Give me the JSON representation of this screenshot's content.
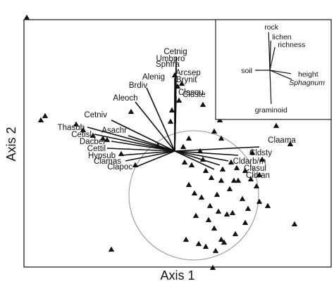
{
  "chart_data": {
    "type": "scatter",
    "title": "",
    "xlabel": "Axis 1",
    "ylabel": "Axis 2",
    "grid": false,
    "sites": {
      "x": [
        -1.05,
        0.92,
        -0.95,
        0.82,
        -0.92,
        -0.7,
        -0.65,
        -0.58,
        -0.51,
        -0.48,
        -0.38,
        -0.31,
        -0.28,
        -0.12,
        0.0,
        0.05,
        0.02,
        0.03,
        -0.02,
        -0.03,
        0.1,
        0.06,
        0.18,
        0.28,
        0.32,
        0.37,
        0.33,
        0.4,
        0.44,
        0.5,
        0.54,
        0.58,
        0.62,
        0.55,
        0.2,
        0.12,
        0.26,
        0.1,
        0.14,
        0.3,
        0.48,
        0.66,
        0.15,
        0.24,
        0.37,
        0.28,
        0.33,
        0.41,
        0.52,
        0.6,
        0.45,
        0.39,
        0.17,
        0.22,
        0.29,
        0.35,
        0.43,
        0.5,
        0.19,
        0.25,
        0.31,
        0.42,
        0.07,
        0.6,
        0.08,
        0.34,
        0.22,
        0.85,
        -0.45,
        0.2,
        0.27,
        0.33,
        0.72
      ],
      "y": [
        0.95,
        0.8,
        0.22,
        0.05,
        0.25,
        0.19,
        0.15,
        0.11,
        0.09,
        0.08,
        -0.02,
        0.28,
        -0.1,
        0.04,
        0.54,
        0.48,
        0.46,
        0.36,
        0.29,
        0.21,
        0.09,
        0.03,
        0.0,
        0.14,
        0.22,
        0.25,
        0.09,
        -0.08,
        -0.12,
        -0.14,
        -0.2,
        -0.25,
        -0.06,
        -0.01,
        -0.06,
        -0.1,
        -0.19,
        -0.24,
        -0.3,
        -0.31,
        -0.34,
        -0.39,
        -0.46,
        -0.49,
        -0.45,
        -0.55,
        -0.63,
        -0.44,
        -0.41,
        -0.36,
        -0.21,
        -0.27,
        -0.66,
        -0.68,
        -0.71,
        -0.65,
        -0.59,
        -0.51,
        -0.33,
        -0.39,
        -0.43,
        -0.21,
        -0.08,
        -0.17,
        -0.63,
        -0.13,
        -0.14,
        -0.52,
        -0.7,
        0.33,
        -0.83,
        -0.21,
        0.18
      ]
    },
    "species": [
      {
        "name": "Cetnig",
        "x": 0.01,
        "y": 0.67
      },
      {
        "name": "Umbpro",
        "x": 0.01,
        "y": 0.63
      },
      {
        "name": "Sphfra",
        "x": 0.01,
        "y": 0.59
      },
      {
        "name": "Alenig",
        "x": 0.0,
        "y": 0.52
      },
      {
        "name": "Arcsep",
        "x": 0.005,
        "y": 0.55
      },
      {
        "name": "Brdiv",
        "x": -0.2,
        "y": 0.45
      },
      {
        "name": "Brynit",
        "x": 0.01,
        "y": 0.5
      },
      {
        "name": "Clasqu",
        "x": 0.0,
        "y": 0.42
      },
      {
        "name": "Aleoch",
        "x": -0.28,
        "y": 0.35
      },
      {
        "name": "Cldste",
        "x": 0.01,
        "y": 0.39
      },
      {
        "name": "Cetniv",
        "x": -0.45,
        "y": 0.22
      },
      {
        "name": "Thasub",
        "x": -0.62,
        "y": 0.17
      },
      {
        "name": "Cetisl",
        "x": -0.57,
        "y": 0.12
      },
      {
        "name": "Asachr",
        "x": -0.33,
        "y": 0.11
      },
      {
        "name": "Dacber",
        "x": -0.45,
        "y": 0.07
      },
      {
        "name": "Cettil",
        "x": -0.48,
        "y": 0.02
      },
      {
        "name": "Hypsub",
        "x": -0.38,
        "y": -0.03
      },
      {
        "name": "Clamas",
        "x": -0.35,
        "y": -0.07
      },
      {
        "name": "Clapoc",
        "x": -0.27,
        "y": -0.11
      },
      {
        "name": "Claama",
        "x": 0.6,
        "y": 0.03
      },
      {
        "name": "Cldsty",
        "x": 0.45,
        "y": -0.03
      },
      {
        "name": "Cldarb/m",
        "x": 0.38,
        "y": -0.07
      },
      {
        "name": "Clasul",
        "x": 0.32,
        "y": -0.1
      },
      {
        "name": "Cldran",
        "x": 0.28,
        "y": -0.13
      }
    ],
    "inset": {
      "vectors": [
        {
          "name": "rock",
          "x": -0.03,
          "y": 0.9
        },
        {
          "name": "lichen",
          "x": 0.02,
          "y": 0.7
        },
        {
          "name": "richness",
          "x": 0.12,
          "y": 0.55
        },
        {
          "name": "soil",
          "x": -0.35,
          "y": 0.0
        },
        {
          "name": "height",
          "x": 0.5,
          "y": -0.08
        },
        {
          "name": "Sphagnum",
          "x": 0.52,
          "y": -0.22
        },
        {
          "name": "graminoid",
          "x": 0.03,
          "y": -0.8
        }
      ]
    }
  }
}
